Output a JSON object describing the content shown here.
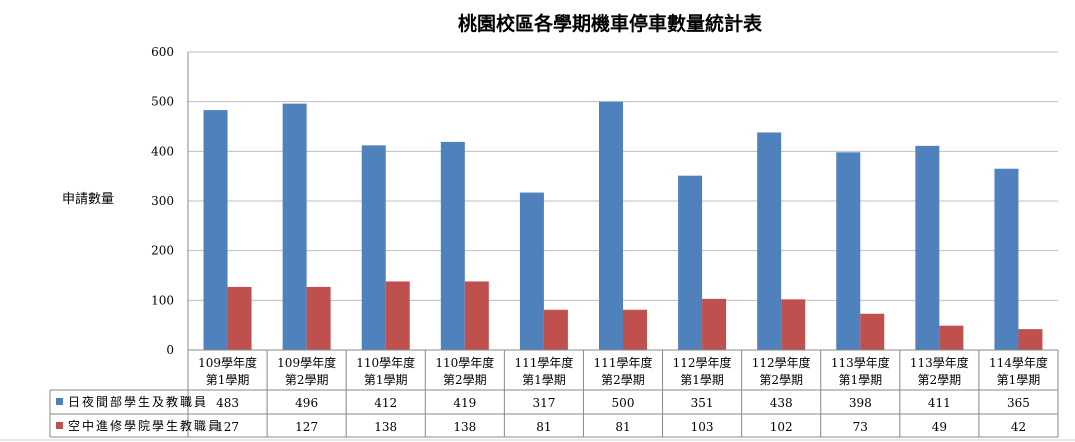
{
  "chart_data": {
    "type": "bar",
    "title": "桃園校區各學期機車停車數量統計表",
    "ylabel": "申請數量",
    "xlabel": "",
    "ylim": [
      0,
      600
    ],
    "yticks": [
      0,
      100,
      200,
      300,
      400,
      500,
      600
    ],
    "grid": true,
    "legend": "data-table",
    "categories": [
      [
        "109學年度",
        "第1學期"
      ],
      [
        "109學年度",
        "第2學期"
      ],
      [
        "110學年度",
        "第1學期"
      ],
      [
        "110學年度",
        "第2學期"
      ],
      [
        "111學年度",
        "第1學期"
      ],
      [
        "111學年度",
        "第2學期"
      ],
      [
        "112學年度",
        "第1學期"
      ],
      [
        "112學年度",
        "第2學期"
      ],
      [
        "113學年度",
        "第1學期"
      ],
      [
        "113學年度",
        "第2學期"
      ],
      [
        "114學年度",
        "第1學期"
      ]
    ],
    "series": [
      {
        "name": "日夜間部學生及教職員",
        "color": "#4F81BD",
        "values": [
          483,
          496,
          412,
          419,
          317,
          500,
          351,
          438,
          398,
          411,
          365
        ]
      },
      {
        "name": "空中進修學院學生教職員",
        "color": "#C0504D",
        "values": [
          127,
          127,
          138,
          138,
          81,
          81,
          103,
          102,
          73,
          49,
          42
        ]
      }
    ]
  }
}
